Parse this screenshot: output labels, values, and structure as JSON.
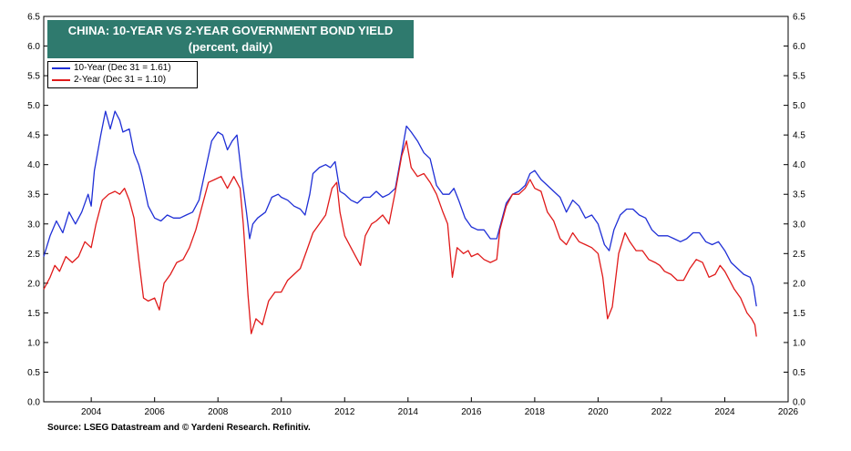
{
  "chart_data": {
    "type": "line",
    "title": "CHINA: 10-YEAR VS 2-YEAR GOVERNMENT BOND YIELD",
    "subtitle": "(percent, daily)",
    "source": "Source: LSEG Datastream and © Yardeni Research. Refinitiv.",
    "xlim": [
      2002.5,
      2026
    ],
    "ylim": [
      0,
      6.5
    ],
    "x_ticks": [
      2004,
      2006,
      2008,
      2010,
      2012,
      2014,
      2016,
      2018,
      2020,
      2022,
      2024,
      2026
    ],
    "y_ticks": [
      "0.0",
      "0.5",
      "1.0",
      "1.5",
      "2.0",
      "2.5",
      "3.0",
      "3.5",
      "4.0",
      "4.5",
      "5.0",
      "5.5",
      "6.0",
      "6.5"
    ],
    "y_axis_both_sides": true,
    "grid": false,
    "legend_position": "top-left",
    "series": [
      {
        "name": "10-Year (Dec 31 = 1.61)",
        "color": "#1f2fd6",
        "points": [
          [
            2002.5,
            2.45
          ],
          [
            2002.7,
            2.8
          ],
          [
            2002.9,
            3.05
          ],
          [
            2003.1,
            2.85
          ],
          [
            2003.3,
            3.2
          ],
          [
            2003.5,
            3.0
          ],
          [
            2003.7,
            3.2
          ],
          [
            2003.9,
            3.5
          ],
          [
            2004.0,
            3.3
          ],
          [
            2004.1,
            3.9
          ],
          [
            2004.3,
            4.5
          ],
          [
            2004.45,
            4.9
          ],
          [
            2004.6,
            4.6
          ],
          [
            2004.75,
            4.9
          ],
          [
            2004.9,
            4.75
          ],
          [
            2005.0,
            4.55
          ],
          [
            2005.2,
            4.6
          ],
          [
            2005.35,
            4.2
          ],
          [
            2005.5,
            4.0
          ],
          [
            2005.6,
            3.8
          ],
          [
            2005.8,
            3.3
          ],
          [
            2006.0,
            3.1
          ],
          [
            2006.2,
            3.05
          ],
          [
            2006.4,
            3.15
          ],
          [
            2006.6,
            3.1
          ],
          [
            2006.8,
            3.1
          ],
          [
            2007.0,
            3.15
          ],
          [
            2007.2,
            3.2
          ],
          [
            2007.4,
            3.4
          ],
          [
            2007.6,
            3.9
          ],
          [
            2007.8,
            4.4
          ],
          [
            2008.0,
            4.55
          ],
          [
            2008.15,
            4.5
          ],
          [
            2008.3,
            4.25
          ],
          [
            2008.45,
            4.4
          ],
          [
            2008.6,
            4.5
          ],
          [
            2008.75,
            3.8
          ],
          [
            2008.9,
            3.2
          ],
          [
            2009.0,
            2.75
          ],
          [
            2009.1,
            3.0
          ],
          [
            2009.25,
            3.1
          ],
          [
            2009.5,
            3.2
          ],
          [
            2009.7,
            3.45
          ],
          [
            2009.9,
            3.5
          ],
          [
            2010.0,
            3.45
          ],
          [
            2010.2,
            3.4
          ],
          [
            2010.4,
            3.3
          ],
          [
            2010.6,
            3.25
          ],
          [
            2010.75,
            3.15
          ],
          [
            2010.9,
            3.5
          ],
          [
            2011.0,
            3.85
          ],
          [
            2011.2,
            3.95
          ],
          [
            2011.4,
            4.0
          ],
          [
            2011.55,
            3.95
          ],
          [
            2011.7,
            4.05
          ],
          [
            2011.85,
            3.55
          ],
          [
            2012.0,
            3.5
          ],
          [
            2012.2,
            3.4
          ],
          [
            2012.4,
            3.35
          ],
          [
            2012.6,
            3.45
          ],
          [
            2012.8,
            3.45
          ],
          [
            2013.0,
            3.55
          ],
          [
            2013.2,
            3.45
          ],
          [
            2013.4,
            3.5
          ],
          [
            2013.6,
            3.6
          ],
          [
            2013.8,
            4.2
          ],
          [
            2013.95,
            4.65
          ],
          [
            2014.1,
            4.55
          ],
          [
            2014.3,
            4.4
          ],
          [
            2014.5,
            4.2
          ],
          [
            2014.7,
            4.1
          ],
          [
            2014.9,
            3.65
          ],
          [
            2015.1,
            3.5
          ],
          [
            2015.3,
            3.5
          ],
          [
            2015.45,
            3.6
          ],
          [
            2015.6,
            3.4
          ],
          [
            2015.8,
            3.1
          ],
          [
            2016.0,
            2.95
          ],
          [
            2016.2,
            2.9
          ],
          [
            2016.4,
            2.9
          ],
          [
            2016.6,
            2.75
          ],
          [
            2016.8,
            2.75
          ],
          [
            2016.95,
            3.05
          ],
          [
            2017.1,
            3.35
          ],
          [
            2017.3,
            3.5
          ],
          [
            2017.5,
            3.55
          ],
          [
            2017.7,
            3.65
          ],
          [
            2017.85,
            3.85
          ],
          [
            2018.0,
            3.9
          ],
          [
            2018.2,
            3.75
          ],
          [
            2018.4,
            3.65
          ],
          [
            2018.6,
            3.55
          ],
          [
            2018.8,
            3.45
          ],
          [
            2019.0,
            3.2
          ],
          [
            2019.2,
            3.4
          ],
          [
            2019.4,
            3.3
          ],
          [
            2019.6,
            3.1
          ],
          [
            2019.8,
            3.15
          ],
          [
            2020.0,
            3.0
          ],
          [
            2020.2,
            2.65
          ],
          [
            2020.35,
            2.55
          ],
          [
            2020.5,
            2.9
          ],
          [
            2020.7,
            3.15
          ],
          [
            2020.9,
            3.25
          ],
          [
            2021.1,
            3.25
          ],
          [
            2021.3,
            3.15
          ],
          [
            2021.5,
            3.1
          ],
          [
            2021.7,
            2.9
          ],
          [
            2021.9,
            2.8
          ],
          [
            2022.0,
            2.8
          ],
          [
            2022.2,
            2.8
          ],
          [
            2022.4,
            2.75
          ],
          [
            2022.6,
            2.7
          ],
          [
            2022.8,
            2.75
          ],
          [
            2023.0,
            2.85
          ],
          [
            2023.2,
            2.85
          ],
          [
            2023.4,
            2.7
          ],
          [
            2023.6,
            2.65
          ],
          [
            2023.8,
            2.7
          ],
          [
            2024.0,
            2.55
          ],
          [
            2024.2,
            2.35
          ],
          [
            2024.4,
            2.25
          ],
          [
            2024.6,
            2.15
          ],
          [
            2024.8,
            2.1
          ],
          [
            2024.9,
            1.95
          ],
          [
            2025.0,
            1.61
          ]
        ]
      },
      {
        "name": "2-Year (Dec 31 = 1.10)",
        "color": "#e01a1a",
        "points": [
          [
            2002.5,
            1.9
          ],
          [
            2002.7,
            2.1
          ],
          [
            2002.85,
            2.3
          ],
          [
            2003.0,
            2.2
          ],
          [
            2003.2,
            2.45
          ],
          [
            2003.4,
            2.35
          ],
          [
            2003.6,
            2.45
          ],
          [
            2003.8,
            2.7
          ],
          [
            2004.0,
            2.6
          ],
          [
            2004.15,
            3.0
          ],
          [
            2004.35,
            3.4
          ],
          [
            2004.55,
            3.5
          ],
          [
            2004.75,
            3.55
          ],
          [
            2004.9,
            3.5
          ],
          [
            2005.05,
            3.6
          ],
          [
            2005.2,
            3.4
          ],
          [
            2005.35,
            3.1
          ],
          [
            2005.5,
            2.4
          ],
          [
            2005.65,
            1.75
          ],
          [
            2005.8,
            1.7
          ],
          [
            2006.0,
            1.75
          ],
          [
            2006.15,
            1.55
          ],
          [
            2006.3,
            2.0
          ],
          [
            2006.5,
            2.15
          ],
          [
            2006.7,
            2.35
          ],
          [
            2006.9,
            2.4
          ],
          [
            2007.1,
            2.6
          ],
          [
            2007.3,
            2.9
          ],
          [
            2007.5,
            3.3
          ],
          [
            2007.7,
            3.7
          ],
          [
            2007.9,
            3.75
          ],
          [
            2008.1,
            3.8
          ],
          [
            2008.3,
            3.6
          ],
          [
            2008.5,
            3.8
          ],
          [
            2008.7,
            3.6
          ],
          [
            2008.8,
            3.0
          ],
          [
            2008.95,
            1.8
          ],
          [
            2009.05,
            1.15
          ],
          [
            2009.2,
            1.4
          ],
          [
            2009.4,
            1.3
          ],
          [
            2009.6,
            1.7
          ],
          [
            2009.8,
            1.85
          ],
          [
            2010.0,
            1.85
          ],
          [
            2010.2,
            2.05
          ],
          [
            2010.4,
            2.15
          ],
          [
            2010.6,
            2.25
          ],
          [
            2010.8,
            2.55
          ],
          [
            2011.0,
            2.85
          ],
          [
            2011.2,
            3.0
          ],
          [
            2011.4,
            3.15
          ],
          [
            2011.6,
            3.6
          ],
          [
            2011.75,
            3.7
          ],
          [
            2011.85,
            3.2
          ],
          [
            2012.0,
            2.8
          ],
          [
            2012.2,
            2.6
          ],
          [
            2012.35,
            2.45
          ],
          [
            2012.5,
            2.3
          ],
          [
            2012.65,
            2.8
          ],
          [
            2012.85,
            3.0
          ],
          [
            2013.0,
            3.05
          ],
          [
            2013.2,
            3.15
          ],
          [
            2013.4,
            3.0
          ],
          [
            2013.6,
            3.55
          ],
          [
            2013.8,
            4.15
          ],
          [
            2013.95,
            4.4
          ],
          [
            2014.1,
            3.95
          ],
          [
            2014.3,
            3.8
          ],
          [
            2014.5,
            3.85
          ],
          [
            2014.7,
            3.7
          ],
          [
            2014.9,
            3.5
          ],
          [
            2015.1,
            3.2
          ],
          [
            2015.25,
            3.0
          ],
          [
            2015.4,
            2.1
          ],
          [
            2015.55,
            2.6
          ],
          [
            2015.75,
            2.5
          ],
          [
            2015.9,
            2.55
          ],
          [
            2016.0,
            2.45
          ],
          [
            2016.2,
            2.5
          ],
          [
            2016.4,
            2.4
          ],
          [
            2016.6,
            2.35
          ],
          [
            2016.8,
            2.4
          ],
          [
            2016.9,
            2.9
          ],
          [
            2017.1,
            3.3
          ],
          [
            2017.3,
            3.5
          ],
          [
            2017.5,
            3.5
          ],
          [
            2017.7,
            3.6
          ],
          [
            2017.85,
            3.75
          ],
          [
            2018.0,
            3.6
          ],
          [
            2018.2,
            3.55
          ],
          [
            2018.4,
            3.2
          ],
          [
            2018.6,
            3.05
          ],
          [
            2018.8,
            2.75
          ],
          [
            2019.0,
            2.65
          ],
          [
            2019.2,
            2.85
          ],
          [
            2019.4,
            2.7
          ],
          [
            2019.6,
            2.65
          ],
          [
            2019.8,
            2.6
          ],
          [
            2020.0,
            2.5
          ],
          [
            2020.15,
            2.1
          ],
          [
            2020.3,
            1.4
          ],
          [
            2020.45,
            1.6
          ],
          [
            2020.65,
            2.5
          ],
          [
            2020.85,
            2.85
          ],
          [
            2021.0,
            2.7
          ],
          [
            2021.2,
            2.55
          ],
          [
            2021.4,
            2.55
          ],
          [
            2021.6,
            2.4
          ],
          [
            2021.8,
            2.35
          ],
          [
            2021.95,
            2.3
          ],
          [
            2022.1,
            2.2
          ],
          [
            2022.3,
            2.15
          ],
          [
            2022.5,
            2.05
          ],
          [
            2022.7,
            2.05
          ],
          [
            2022.9,
            2.25
          ],
          [
            2023.1,
            2.4
          ],
          [
            2023.3,
            2.35
          ],
          [
            2023.5,
            2.1
          ],
          [
            2023.7,
            2.15
          ],
          [
            2023.85,
            2.3
          ],
          [
            2024.0,
            2.2
          ],
          [
            2024.15,
            2.05
          ],
          [
            2024.3,
            1.9
          ],
          [
            2024.5,
            1.75
          ],
          [
            2024.7,
            1.5
          ],
          [
            2024.85,
            1.4
          ],
          [
            2024.95,
            1.3
          ],
          [
            2025.0,
            1.1
          ]
        ]
      }
    ]
  }
}
